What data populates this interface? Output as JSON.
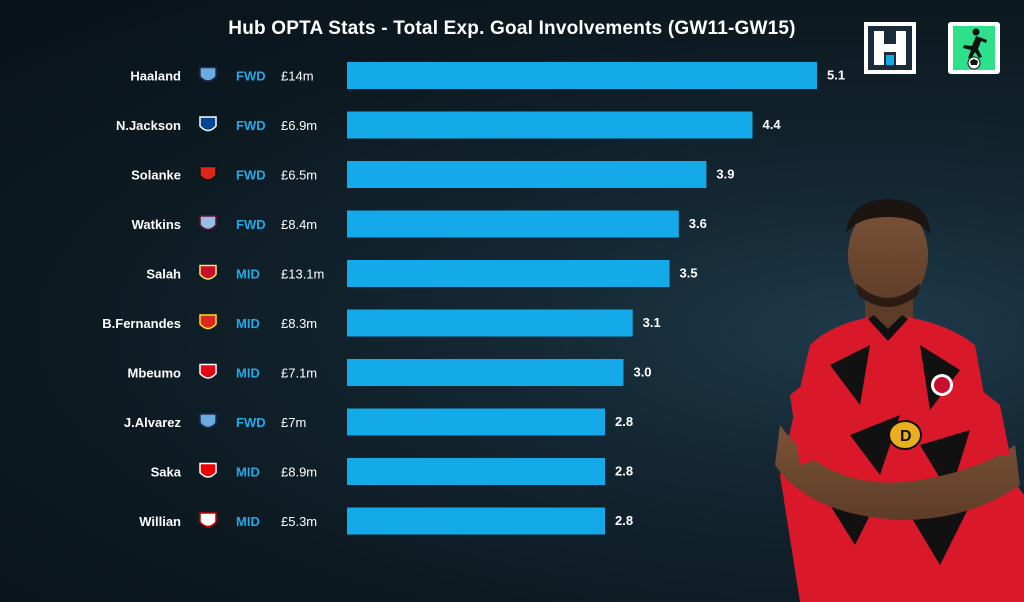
{
  "chart_data": {
    "type": "bar",
    "title": "Hub OPTA Stats - Total Exp. Goal Involvements (GW11-GW15)",
    "orientation": "horizontal",
    "categories": [
      "Haaland",
      "N.Jackson",
      "Solanke",
      "Watkins",
      "Salah",
      "B.Fernandes",
      "Mbeumo",
      "J.Alvarez",
      "Saka",
      "Willian"
    ],
    "positions": [
      "FWD",
      "FWD",
      "FWD",
      "FWD",
      "MID",
      "MID",
      "MID",
      "FWD",
      "MID",
      "MID"
    ],
    "prices": [
      "£14m",
      "£6.9m",
      "£6.5m",
      "£8.4m",
      "£13.1m",
      "£8.3m",
      "£7.1m",
      "£7m",
      "£8.9m",
      "£5.3m"
    ],
    "value_labels": [
      "5.1",
      "4.4",
      "3.9",
      "3.6",
      "3.5",
      "3.1",
      "3.0",
      "2.8",
      "2.8",
      "2.8"
    ],
    "values": [
      5.1,
      4.4,
      3.9,
      3.6,
      3.5,
      3.1,
      3.0,
      2.8,
      2.8,
      2.8
    ],
    "club_badges": [
      "man-city-badge",
      "chelsea-badge",
      "bournemouth-badge",
      "aston-villa-badge",
      "liverpool-badge",
      "man-utd-badge",
      "brentford-badge",
      "man-city-badge",
      "arsenal-badge",
      "fulham-badge"
    ],
    "bar_color": "#14a9e8",
    "position_color": "#22a9e8",
    "xlim": [
      0,
      5.1
    ],
    "grid": false,
    "legend": "none"
  },
  "logos": {
    "hub": "fantasy-football-hub-logo",
    "ff": "fantasy-football-player-logo"
  },
  "player_photo": "player-in-bournemouth-kit"
}
